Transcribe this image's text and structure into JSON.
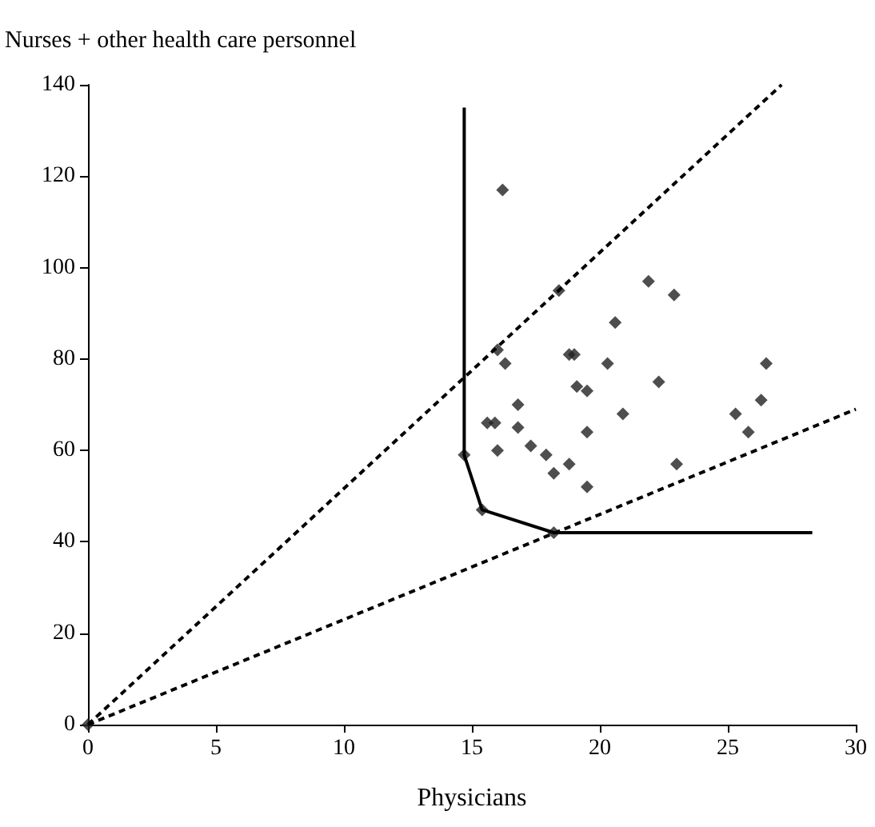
{
  "chart_data": {
    "type": "scatter",
    "xlabel": "Physicians",
    "ylabel": "Nurses + other health care personnel",
    "xlim": [
      0,
      30
    ],
    "ylim": [
      0,
      140
    ],
    "xticks": [
      0,
      5,
      10,
      15,
      20,
      25,
      30
    ],
    "yticks": [
      0,
      20,
      40,
      60,
      80,
      100,
      120,
      140
    ],
    "grid": false,
    "marker": "diamond",
    "series": [
      {
        "color": "#222222",
        "x": [
          0,
          16.2,
          21.9,
          22.9,
          18.4,
          20.6,
          16.0,
          16.3,
          18.8,
          19.0,
          20.3,
          26.5,
          22.3,
          19.1,
          19.5,
          16.8,
          26.3,
          20.9,
          25.3,
          15.6,
          15.9,
          16.8,
          19.5,
          25.8,
          16.0,
          17.3,
          17.9,
          18.8,
          23.0,
          18.2,
          19.5,
          14.7,
          15.4,
          18.2
        ],
        "values": [
          0,
          117,
          97,
          94,
          95,
          88,
          82,
          79,
          81,
          81,
          79,
          79,
          75,
          74,
          73,
          70,
          71,
          68,
          68,
          66,
          66,
          65,
          64,
          64,
          60,
          61,
          59,
          57,
          57,
          55,
          52,
          59,
          47,
          42
        ]
      },
      {
        "type": "line",
        "color": "#000000",
        "marker": "none",
        "line_style": "solid",
        "x": [
          14.7,
          14.7,
          15.4,
          18.2,
          28.3
        ],
        "values": [
          135,
          59,
          47,
          42,
          42
        ]
      },
      {
        "type": "line",
        "color": "#000000",
        "marker": "none",
        "line_style": "dashed",
        "x": [
          0,
          27.1
        ],
        "values": [
          0,
          140
        ]
      },
      {
        "type": "line",
        "color": "#000000",
        "marker": "none",
        "line_style": "dashed",
        "x": [
          0,
          30
        ],
        "values": [
          0,
          69
        ]
      }
    ]
  }
}
